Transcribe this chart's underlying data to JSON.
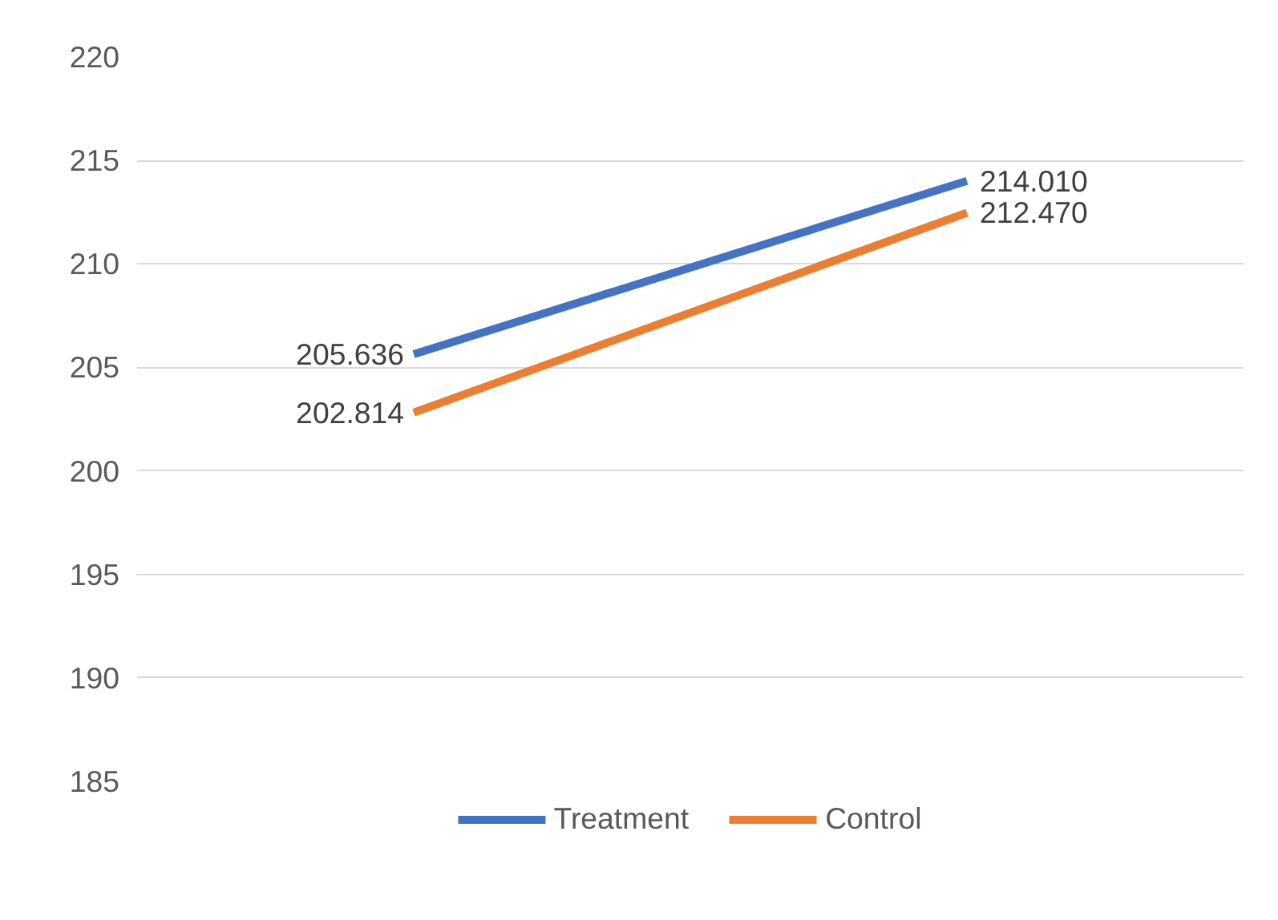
{
  "chart_data": {
    "type": "line",
    "categories": [
      null,
      null
    ],
    "series": [
      {
        "name": "Treatment",
        "color": "#4472c4",
        "values": [
          205.636,
          214.01
        ],
        "value_labels": [
          "205.636",
          "214.010"
        ]
      },
      {
        "name": "Control",
        "color": "#ed7d31",
        "values": [
          202.814,
          212.47
        ],
        "value_labels": [
          "202.814",
          "212.470"
        ]
      }
    ],
    "ylim": [
      185,
      220
    ],
    "yticks": [
      185,
      190,
      195,
      200,
      205,
      210,
      215,
      220
    ],
    "grid": "y",
    "legend": "bottom",
    "tick_labels": "y",
    "marker": "none",
    "line_style": "solid"
  }
}
